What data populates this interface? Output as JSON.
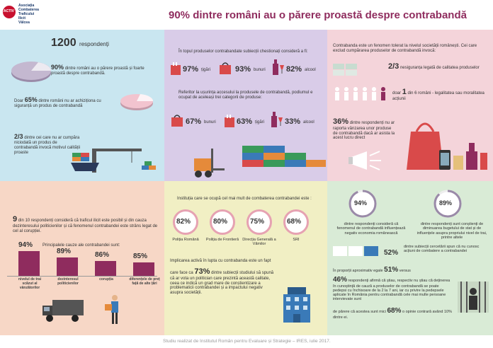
{
  "header": {
    "logo_lines": [
      "Asociația",
      "Combaterea",
      "Traficului",
      "Ilicit",
      "Vâlcea"
    ],
    "logo_badge": "ACTIV",
    "title_pct": "90%",
    "title_rest": "dintre români au o părere proastă despre contrabandă"
  },
  "colors": {
    "blue_panel": "#c9e6f0",
    "purple_panel": "#d9cce8",
    "pink_panel": "#f4d4da",
    "peach_panel": "#f7d7c6",
    "yellow_panel": "#f1efc4",
    "green_panel": "#d9ebd6",
    "accent": "#8f2c5e",
    "title": "#8f2c5e"
  },
  "p1": {
    "respondents_num": "1200",
    "respondents_label": "respondenți",
    "s1_pct": "90%",
    "s1_text": "dintre români au o părere proastă și foarte proastă despre contrabandă.",
    "s2_prefix": "Doar",
    "s2_pct": "65%",
    "s2_text": "dintre români nu ar achiziționa cu siguranță un produs de contrabandă",
    "s3_pct": "2/3",
    "s3_text": "dintre cei care nu ar cumpăra niciodată un produs de contrabandă invocă motivul calității proaste"
  },
  "p2": {
    "intro": "În topul produselor contrabandate subiecții chestionați consideră a fi:",
    "row1": [
      {
        "pct": "97%",
        "label": "țigări"
      },
      {
        "pct": "93%",
        "label": "bunuri"
      },
      {
        "pct": "82%",
        "label": "alcool"
      }
    ],
    "intro2": "Referitor la ușurința accesului la produsele de contrabandă, podiumul e ocupat de aceleași trei categorii de produse:",
    "row2": [
      {
        "pct": "67%",
        "label": "bunuri"
      },
      {
        "pct": "63%",
        "label": "țigări"
      },
      {
        "pct": "33%",
        "label": "alcool"
      }
    ]
  },
  "p3": {
    "intro": "Contrabanda este un fenomen tolerat la nivelul societății românești. Cei care exclud cumpărarea produselor de contrabandă invocă:",
    "s1_pct": "2/3",
    "s1_text": "nesiguranța legată de calitatea produselor",
    "s2_prefix": "doar",
    "s2_num": "1",
    "s2_text": "din 6 români - legalitatea sau moralitatea acțiunii",
    "s3_pct": "36%",
    "s3_text": "dintre respondenți nu ar raporta vânzarea unor produse de contrabandă dacă ar asista la acest lucru direct"
  },
  "p4": {
    "lead_num": "9",
    "lead_text": "din 10 respondenți consideră că traficul ilicit este posibil și din cauza dezinteresului politicienilor și că fenomenul contrabandei este strâns legat de cel al corupției.",
    "causes_title": "Principalele cauze ale contrabandei sunt:",
    "causes": [
      {
        "pct": "94%",
        "label": "nivelul de trai scăzut al vânzătorilor"
      },
      {
        "pct": "89%",
        "label": "dezinteresul politicienilor"
      },
      {
        "pct": "86%",
        "label": "corupția"
      },
      {
        "pct": "85%",
        "label": "diferențele de preț față de alte țări"
      }
    ]
  },
  "p5": {
    "intro": "Instituția care se ocupă cel mai mult de combaterea contrabandei este :",
    "institutions": [
      {
        "pct": "82%",
        "label": "Poliția Română"
      },
      {
        "pct": "80%",
        "label": "Poliția de Frontieră"
      },
      {
        "pct": "75%",
        "label": "Direcția Generală a Vămilor"
      },
      {
        "pct": "68%",
        "label": "SRI"
      }
    ],
    "fact_intro": "Implicarea activă în lupta cu contrabanda este un fapt",
    "fact_prefix": "care face ca",
    "fact_pct": "73%",
    "fact_text": "dintre subiecții studiului să spună că ar vota un politician care prezintă această calitate, ceea ce indică un grad mare de conștientizare a problematicii contrabandei și a impactului negativ asupra societății."
  },
  "p6": {
    "c1_pct": "94%",
    "c1_text": "dintre respondenți consideră că fenomenul de contrabandă influențează negativ economia românească",
    "c2_pct": "89%",
    "c2_text": "dintre respondenți sunt conștienți de diminuarea bugetului de stat și de influențele asupra propriului nivel de trai, printre altele",
    "s1_text": "dintre subiecții cercetării spun că nu cunosc acțiuni de combatere a contrabandei",
    "s1_pct": "52%",
    "s2_prefix": "În proporții aproximativ egale",
    "s2_pct": "51%",
    "s2_suffix": "versus",
    "s3_pct": "46%",
    "s3_text": "respondenți afirmă că știau, respectiv nu știau că deținerea în cunoștință de cauză a produselor de contrabandă se poate pedepsi cu închisoare de la 2 la 7 ani, iar cu privire la pedepsele aplicate în România pentru contrabandă cele mai multe persoane intervievate sunt",
    "s4_prefix": "de părere că acestea sunt mici",
    "s4_pct": "68%",
    "s4_text": "o opinie contrară având 10% dintre ei."
  },
  "footer": {
    "text": "Studiu realizat de Institutul Român pentru Evaluare și Strategie – IRES, iulie 2017."
  }
}
